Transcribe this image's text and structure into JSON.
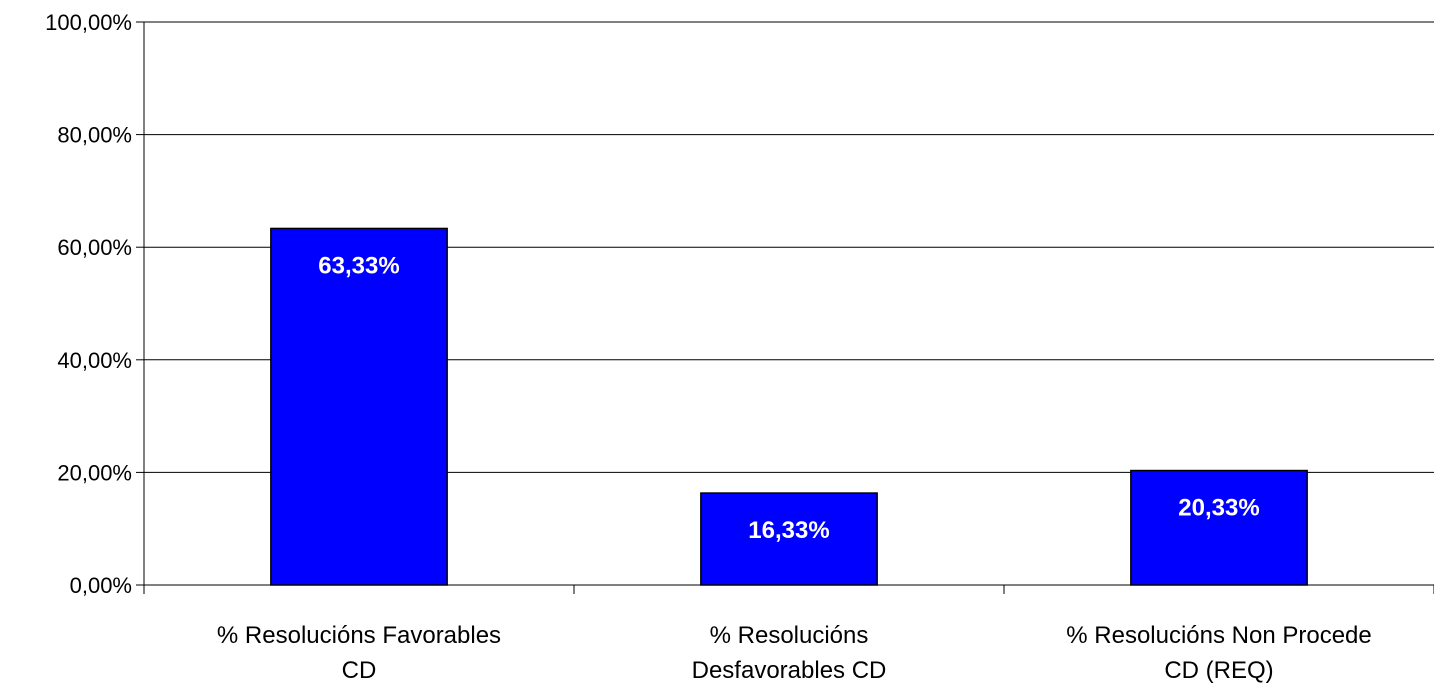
{
  "chart_data": {
    "type": "bar",
    "categories": [
      [
        "% Resolucións Favorables",
        "CD"
      ],
      [
        "% Resolucións",
        "Desfavorables CD"
      ],
      [
        "% Resolucións Non Procede",
        "CD (REQ)"
      ]
    ],
    "values": [
      63.33,
      16.33,
      20.33
    ],
    "data_labels": [
      "63,33%",
      "16,33%",
      "20,33%"
    ],
    "y_ticks": [
      0,
      20,
      40,
      60,
      80,
      100
    ],
    "y_tick_labels": [
      "0,00%",
      "20,00%",
      "40,00%",
      "60,00%",
      "80,00%",
      "100,00%"
    ],
    "ylim": [
      0,
      100
    ],
    "grid": true,
    "legend": "none",
    "title": "",
    "xlabel": "",
    "ylabel": "",
    "colors": {
      "bar": "#0000FF",
      "bar_border": "#000000",
      "grid": "#000000",
      "data_label": "#FFFFFF"
    }
  }
}
